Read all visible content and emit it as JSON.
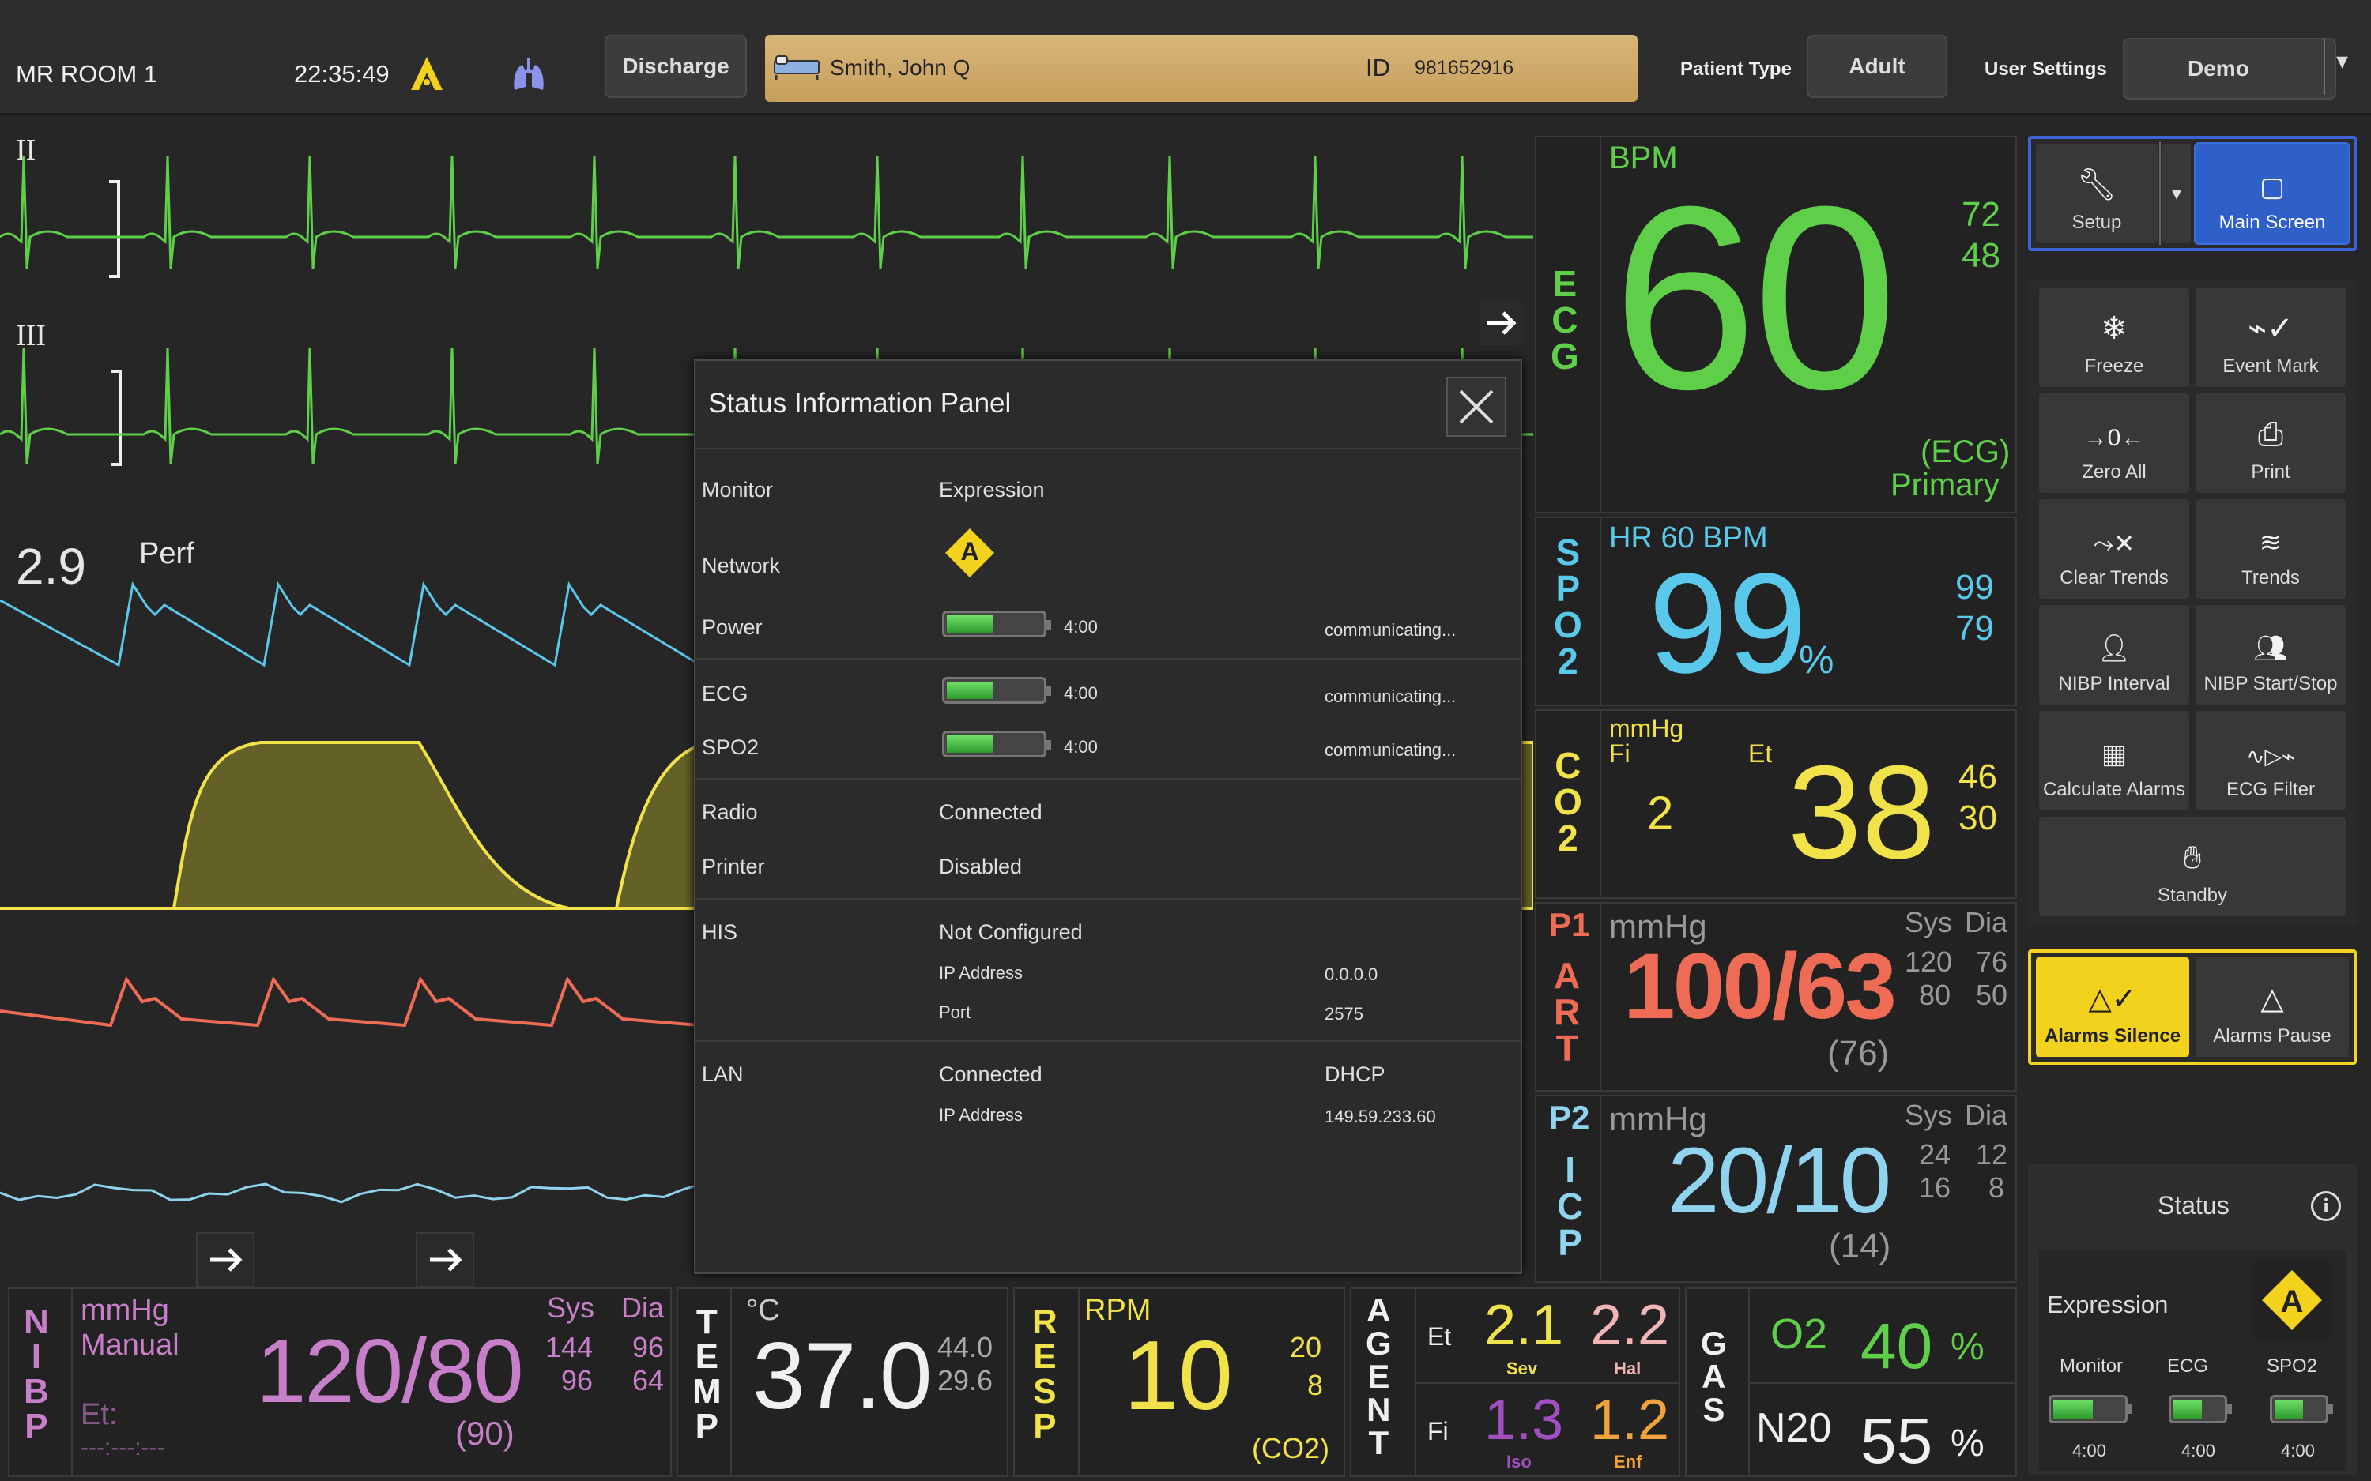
{
  "topbar": {
    "room": "MR ROOM 1",
    "time": "22:35:49",
    "discharge_label": "Discharge",
    "patient_name": "Smith, John Q",
    "id_label": "ID",
    "patient_id": "981652916",
    "patient_type_label": "Patient Type",
    "patient_type_value": "Adult",
    "user_settings_label": "User Settings",
    "user_settings_value": "Demo"
  },
  "waves": {
    "lead_ii": "II",
    "lead_iii": "III",
    "perf_value": "2.9",
    "perf_label": "Perf"
  },
  "ecg": {
    "label": [
      "E",
      "C",
      "G"
    ],
    "unit": "BPM",
    "value": "60",
    "limit_high": "72",
    "limit_low": "48",
    "source": "(ECG)",
    "primary": "Primary"
  },
  "spo2": {
    "label": [
      "S",
      "P",
      "O",
      "2"
    ],
    "hr": "HR 60 BPM",
    "value": "99",
    "unit": "%",
    "limit_high": "99",
    "limit_low": "79"
  },
  "co2": {
    "label": [
      "C",
      "O",
      "2"
    ],
    "unit": "mmHg",
    "fi_label": "Fi",
    "et_label": "Et",
    "fi_value": "2",
    "et_value": "38",
    "limit_high": "46",
    "limit_low": "30"
  },
  "art": {
    "channel": "P1",
    "label": [
      "A",
      "R",
      "T"
    ],
    "unit": "mmHg",
    "sys_label": "Sys",
    "dia_label": "Dia",
    "value": "100/63",
    "mean": "(76)",
    "sys_high": "120",
    "sys_low": "80",
    "dia_high": "76",
    "dia_low": "50"
  },
  "icp": {
    "channel": "P2",
    "label": [
      "I",
      "C",
      "P"
    ],
    "unit": "mmHg",
    "sys_label": "Sys",
    "dia_label": "Dia",
    "value": "20/10",
    "mean": "(14)",
    "sys_high": "24",
    "sys_low": "16",
    "dia_high": "12",
    "dia_low": "8"
  },
  "nibp": {
    "label": [
      "N",
      "I",
      "B",
      "P"
    ],
    "unit": "mmHg",
    "mode": "Manual",
    "sys_label": "Sys",
    "dia_label": "Dia",
    "value": "120/80",
    "mean": "(90)",
    "sys_high": "144",
    "sys_low": "96",
    "dia_high": "96",
    "dia_low": "64",
    "et_label": "Et:",
    "et_value": "---:---:---"
  },
  "temp": {
    "label": [
      "T",
      "E",
      "M",
      "P"
    ],
    "unit": "°C",
    "value": "37.0",
    "limit_high": "44.0",
    "limit_low": "29.6"
  },
  "resp": {
    "label": [
      "R",
      "E",
      "S",
      "P"
    ],
    "unit": "RPM",
    "value": "10",
    "limit_high": "20",
    "limit_low": "8",
    "source": "(CO2)"
  },
  "agent": {
    "label": [
      "A",
      "G",
      "E",
      "N",
      "T"
    ],
    "et_label": "Et",
    "fi_label": "Fi",
    "et_sev": "2.1",
    "sev_label": "Sev",
    "et_hal": "2.2",
    "hal_label": "Hal",
    "fi_iso": "1.3",
    "iso_label": "Iso",
    "fi_enf": "1.2",
    "enf_label": "Enf"
  },
  "gas": {
    "label": [
      "G",
      "A",
      "S"
    ],
    "o2_label": "O2",
    "o2_value": "40",
    "o2_unit": "%",
    "n2o_label": "N20",
    "n2o_value": "55",
    "n2o_unit": "%"
  },
  "sidebar": {
    "setup": "Setup",
    "main_screen": "Main Screen",
    "freeze": "Freeze",
    "event_mark": "Event Mark",
    "zero_all": "Zero All",
    "print": "Print",
    "clear_trends": "Clear Trends",
    "trends": "Trends",
    "nibp_interval": "NIBP Interval",
    "nibp_startstop": "NIBP Start/Stop",
    "calc_alarms": "Calculate Alarms",
    "ecg_filter": "ECG Filter",
    "standby": "Standby",
    "alarms_silence": "Alarms Silence",
    "alarms_pause": "Alarms Pause"
  },
  "status_box": {
    "title": "Status",
    "expression": "Expression",
    "badge": "A",
    "monitor": "Monitor",
    "ecg": "ECG",
    "spo2": "SPO2",
    "t1": "4:00",
    "t2": "4:00",
    "t3": "4:00"
  },
  "dialog": {
    "title": "Status Information Panel",
    "monitor_label": "Monitor",
    "monitor_value": "Expression",
    "network_label": "Network",
    "network_badge": "A",
    "power_label": "Power",
    "power_time": "4:00",
    "power_status": "communicating...",
    "ecg_label": "ECG",
    "ecg_time": "4:00",
    "ecg_status": "communicating...",
    "spo2_label": "SPO2",
    "spo2_time": "4:00",
    "spo2_status": "communicating...",
    "radio_label": "Radio",
    "radio_value": "Connected",
    "printer_label": "Printer",
    "printer_value": "Disabled",
    "his_label": "HIS",
    "his_value": "Not Configured",
    "his_ip_label": "IP Address",
    "his_ip": "0.0.0.0",
    "his_port_label": "Port",
    "his_port": "2575",
    "lan_label": "LAN",
    "lan_value": "Connected",
    "lan_mode": "DHCP",
    "lan_ip_label": "IP Address",
    "lan_ip": "149.59.233.60"
  },
  "colors": {
    "ecg_green": "#5fcf4a",
    "spo2_cyan": "#5ac8ea",
    "co2_yellow": "#f2e24a",
    "art_red": "#ee6b55",
    "icp_blue": "#8fd3ee",
    "nibp_purple": "#c77fc9",
    "agent_orange": "#f0a23c",
    "alarm_yellow": "#f2d21c"
  }
}
